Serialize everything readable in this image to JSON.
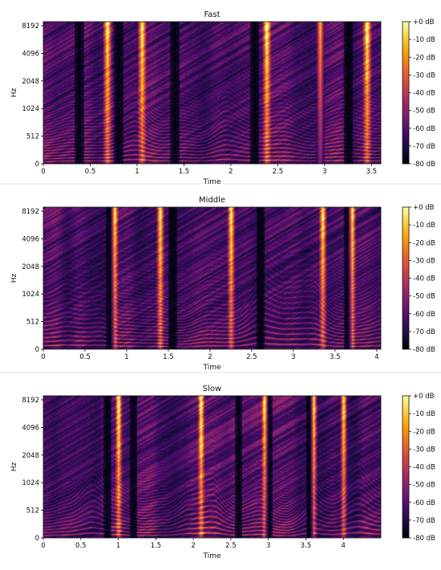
{
  "colors": {
    "colormap": [
      "#000004",
      "#1b0c41",
      "#4a0c6b",
      "#781c6d",
      "#a52c60",
      "#cf4446",
      "#ed6925",
      "#fb9b06",
      "#f7d13d",
      "#fcffa4"
    ],
    "background": "#ffffff",
    "text": "#111111"
  },
  "chart_data": [
    {
      "type": "heatmap",
      "title": "Fast",
      "xlabel": "Time",
      "ylabel": "Hz",
      "xlim": [
        0,
        3.6
      ],
      "x_ticks": [
        0,
        0.5,
        1,
        1.5,
        2,
        2.5,
        3,
        3.5
      ],
      "x_tick_labels": [
        "0",
        "0.5",
        "1",
        "1.5",
        "2",
        "2.5",
        "3",
        "3.5"
      ],
      "y_ticks": [
        0,
        512,
        1024,
        2048,
        4096,
        8192
      ],
      "y_tick_labels": [
        "0",
        "512",
        "1024",
        "2048",
        "4096",
        "8192"
      ],
      "colorbar": {
        "range": [
          -80,
          0
        ],
        "ticks": [
          0,
          -10,
          -20,
          -30,
          -40,
          -50,
          -60,
          -70,
          -80
        ],
        "labels": [
          "+0 dB",
          "-10 dB",
          "-20 dB",
          "-30 dB",
          "-40 dB",
          "-50 dB",
          "-60 dB",
          "-70 dB",
          "-80 dB"
        ]
      },
      "silences": [
        0.38,
        0.8,
        1.4,
        2.25,
        2.95,
        3.25
      ],
      "bright_bursts": [
        0.68,
        1.05,
        2.38,
        2.95,
        3.45
      ]
    },
    {
      "type": "heatmap",
      "title": "Middle",
      "xlabel": "Time",
      "ylabel": "Hz",
      "xlim": [
        0,
        4.05
      ],
      "x_ticks": [
        0,
        0.5,
        1,
        1.5,
        2,
        2.5,
        3,
        3.5,
        4
      ],
      "x_tick_labels": [
        "0",
        "0.5",
        "1",
        "1.5",
        "2",
        "2.5",
        "3",
        "3.5",
        "4"
      ],
      "y_ticks": [
        0,
        512,
        1024,
        2048,
        4096,
        8192
      ],
      "y_tick_labels": [
        "0",
        "512",
        "1024",
        "2048",
        "4096",
        "8192"
      ],
      "colorbar": {
        "range": [
          -80,
          0
        ],
        "ticks": [
          0,
          -10,
          -20,
          -30,
          -40,
          -50,
          -60,
          -70,
          -80
        ],
        "labels": [
          "+0 dB",
          "-10 dB",
          "-20 dB",
          "-30 dB",
          "-40 dB",
          "-50 dB",
          "-60 dB",
          "-70 dB",
          "-80 dB"
        ]
      },
      "silences": [
        0.8,
        1.55,
        2.6,
        3.65
      ],
      "bright_bursts": [
        0.85,
        1.4,
        2.25,
        3.35,
        3.7
      ]
    },
    {
      "type": "heatmap",
      "title": "Slow",
      "xlabel": "Time",
      "ylabel": "Hz",
      "xlim": [
        0,
        4.5
      ],
      "x_ticks": [
        0,
        0.5,
        1,
        1.5,
        2,
        2.5,
        3,
        3.5,
        4
      ],
      "x_tick_labels": [
        "0",
        "0.5",
        "1",
        "1.5",
        "2",
        "2.5",
        "3",
        "3.5",
        "4"
      ],
      "y_ticks": [
        0,
        512,
        1024,
        2048,
        4096,
        8192
      ],
      "y_tick_labels": [
        "0",
        "512",
        "1024",
        "2048",
        "4096",
        "8192"
      ],
      "colorbar": {
        "range": [
          -80,
          0
        ],
        "ticks": [
          0,
          -10,
          -20,
          -30,
          -40,
          -50,
          -60,
          -70,
          -80
        ],
        "labels": [
          "+0 dB",
          "-10 dB",
          "-20 dB",
          "-30 dB",
          "-40 dB",
          "-50 dB",
          "-60 dB",
          "-70 dB",
          "-80 dB"
        ]
      },
      "silences": [
        0.85,
        1.2,
        2.6,
        3.0,
        3.55
      ],
      "bright_bursts": [
        1.0,
        2.1,
        2.95,
        3.6,
        4.0
      ]
    }
  ]
}
